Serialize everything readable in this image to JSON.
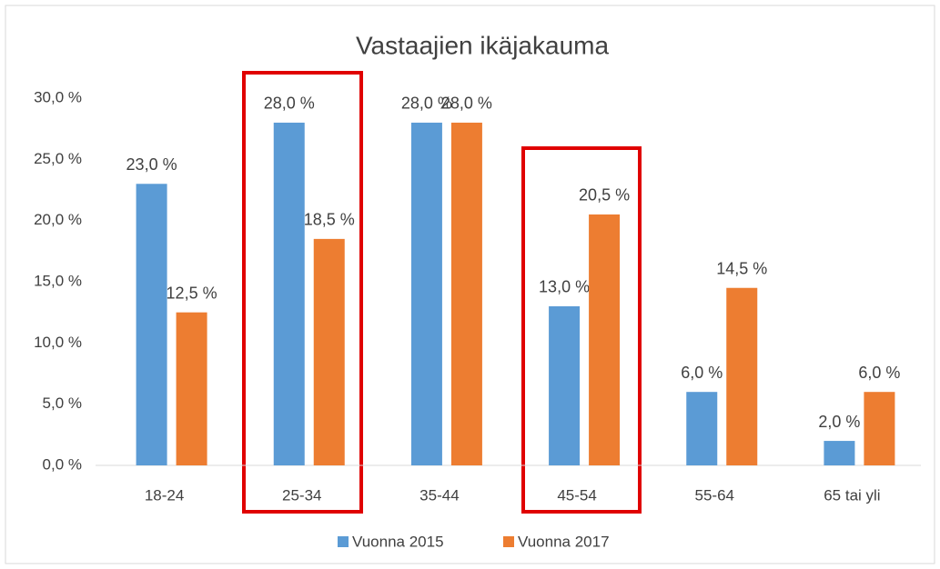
{
  "chart_data": {
    "type": "bar",
    "title": "Vastaajien ikäjakauma",
    "categories": [
      "18-24",
      "25-34",
      "35-44",
      "45-54",
      "55-64",
      "65 tai yli"
    ],
    "series": [
      {
        "name": "Vuonna 2015",
        "color": "#5b9bd5",
        "values": [
          23,
          28,
          28,
          13,
          6,
          2
        ],
        "value_labels": [
          "23,0 %",
          "28,0 %",
          "28,0 %",
          "13,0 %",
          "6,0 %",
          "2,0 %"
        ]
      },
      {
        "name": "Vuonna 2017",
        "color": "#ed7d31",
        "values": [
          12.5,
          18.5,
          28,
          20.5,
          14.5,
          6
        ],
        "value_labels": [
          "12,5 %",
          "18,5 %",
          "28,0 %",
          "20,5 %",
          "14,5 %",
          "6,0 %"
        ]
      }
    ],
    "ylim": [
      0,
      30
    ],
    "yticks": [
      {
        "value": 0,
        "label": "0,0 %"
      },
      {
        "value": 5,
        "label": "5,0 %"
      },
      {
        "value": 10,
        "label": "10,0 %"
      },
      {
        "value": 15,
        "label": "15,0 %"
      },
      {
        "value": 20,
        "label": "20,0 %"
      },
      {
        "value": 25,
        "label": "25,0 %"
      },
      {
        "value": 30,
        "label": "30,0 %"
      }
    ],
    "grid": false,
    "legend": "bottom"
  }
}
